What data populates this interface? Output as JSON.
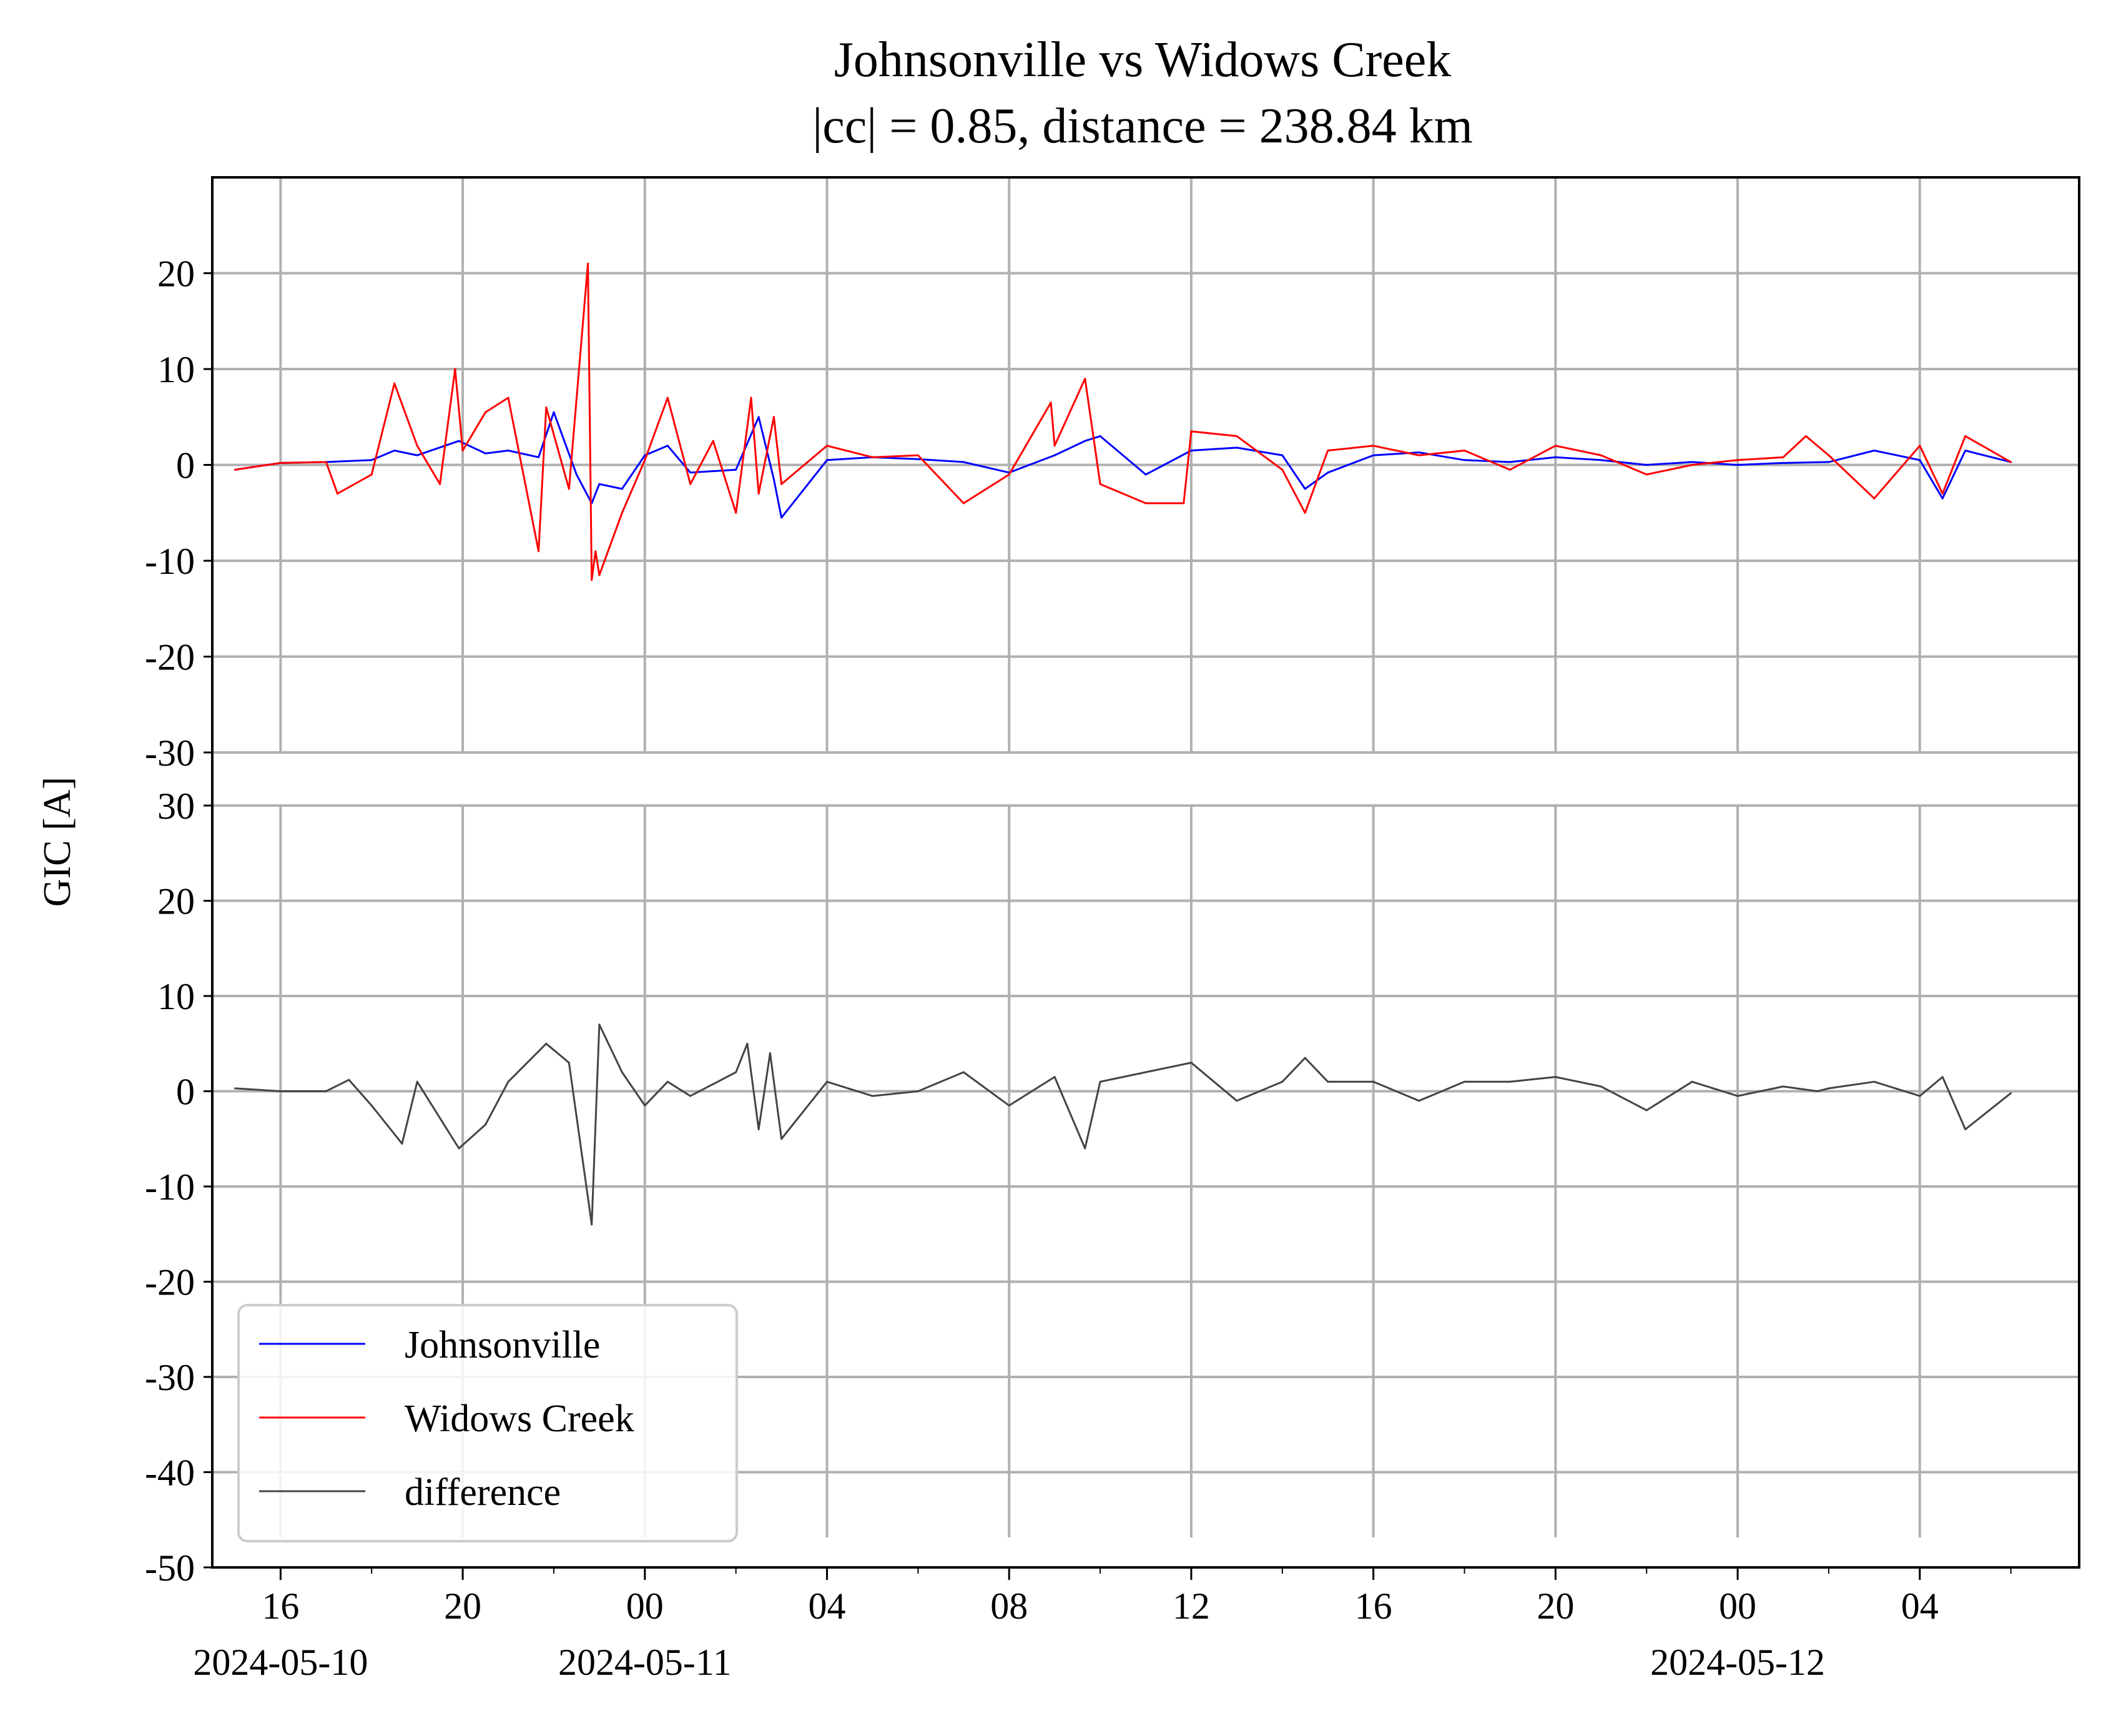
{
  "chart_data": {
    "type": "line",
    "title": "Johnsonville vs Widows Creek",
    "subtitle": "|cc| = 0.85, distance = 238.84 km",
    "ylabel": "GIC [A]",
    "xlabel": "",
    "x_range": [
      "2024-05-10T14:30",
      "2024-05-12T07:30"
    ],
    "x_tick_labels": [
      "16",
      "20",
      "00",
      "04",
      "08",
      "12",
      "16",
      "20",
      "00",
      "04"
    ],
    "x_date_labels": [
      "2024-05-10",
      "2024-05-11",
      "2024-05-12"
    ],
    "grid": true,
    "legend_position": "lower-left",
    "panels": [
      {
        "name": "top",
        "ylim": [
          -30,
          30
        ],
        "y_ticks": [
          20,
          10,
          0,
          -10,
          -20,
          -30
        ],
        "series": [
          {
            "name": "Johnsonville",
            "color": "#0000ff",
            "x": [
              "2024-05-10T15:00",
              "2024-05-10T16:00",
              "2024-05-10T17:00",
              "2024-05-10T18:00",
              "2024-05-10T18:30",
              "2024-05-10T19:00",
              "2024-05-10T19:55",
              "2024-05-10T20:30",
              "2024-05-10T21:00",
              "2024-05-10T21:40",
              "2024-05-10T22:00",
              "2024-05-10T22:30",
              "2024-05-10T22:50",
              "2024-05-10T23:00",
              "2024-05-10T23:30",
              "2024-05-11T00:00",
              "2024-05-11T00:30",
              "2024-05-11T01:00",
              "2024-05-11T02:00",
              "2024-05-11T02:30",
              "2024-05-11T02:50",
              "2024-05-11T03:00",
              "2024-05-11T04:00",
              "2024-05-11T05:00",
              "2024-05-11T06:00",
              "2024-05-11T07:00",
              "2024-05-11T08:00",
              "2024-05-11T09:00",
              "2024-05-11T09:40",
              "2024-05-11T10:00",
              "2024-05-11T11:00",
              "2024-05-11T12:00",
              "2024-05-11T13:00",
              "2024-05-11T14:00",
              "2024-05-11T14:30",
              "2024-05-11T15:00",
              "2024-05-11T16:00",
              "2024-05-11T17:00",
              "2024-05-11T18:00",
              "2024-05-11T19:00",
              "2024-05-11T20:00",
              "2024-05-11T21:00",
              "2024-05-11T22:00",
              "2024-05-11T23:00",
              "2024-05-12T00:00",
              "2024-05-12T01:00",
              "2024-05-12T02:00",
              "2024-05-12T03:00",
              "2024-05-12T04:00",
              "2024-05-12T04:30",
              "2024-05-12T05:00",
              "2024-05-12T06:00"
            ],
            "values": [
              -0.5,
              0.2,
              0.3,
              0.5,
              1.5,
              1.0,
              2.5,
              1.2,
              1.5,
              0.8,
              5.5,
              -1.0,
              -4.0,
              -2.0,
              -2.5,
              1.0,
              2.0,
              -0.8,
              -0.5,
              5.0,
              -1.5,
              -5.5,
              0.5,
              0.8,
              0.6,
              0.3,
              -0.8,
              1.0,
              2.5,
              3.0,
              -1.0,
              1.5,
              1.8,
              1.0,
              -2.5,
              -0.8,
              1.0,
              1.3,
              0.5,
              0.3,
              0.8,
              0.5,
              0.0,
              0.3,
              0.0,
              0.2,
              0.3,
              1.5,
              0.5,
              -3.5,
              1.5,
              0.3
            ]
          },
          {
            "name": "Widows Creek",
            "color": "#ff0000",
            "x": [
              "2024-05-10T15:00",
              "2024-05-10T16:00",
              "2024-05-10T17:00",
              "2024-05-10T17:15",
              "2024-05-10T18:00",
              "2024-05-10T18:30",
              "2024-05-10T19:00",
              "2024-05-10T19:30",
              "2024-05-10T19:50",
              "2024-05-10T20:00",
              "2024-05-10T20:30",
              "2024-05-10T21:00",
              "2024-05-10T21:40",
              "2024-05-10T21:50",
              "2024-05-10T22:20",
              "2024-05-10T22:45",
              "2024-05-10T22:50",
              "2024-05-10T22:55",
              "2024-05-10T23:00",
              "2024-05-10T23:30",
              "2024-05-11T00:00",
              "2024-05-11T00:30",
              "2024-05-11T01:00",
              "2024-05-11T01:30",
              "2024-05-11T02:00",
              "2024-05-11T02:20",
              "2024-05-11T02:30",
              "2024-05-11T02:50",
              "2024-05-11T03:00",
              "2024-05-11T04:00",
              "2024-05-11T05:00",
              "2024-05-11T06:00",
              "2024-05-11T07:00",
              "2024-05-11T08:00",
              "2024-05-11T08:55",
              "2024-05-11T09:00",
              "2024-05-11T09:40",
              "2024-05-11T10:00",
              "2024-05-11T11:00",
              "2024-05-11T11:50",
              "2024-05-11T12:00",
              "2024-05-11T13:00",
              "2024-05-11T14:00",
              "2024-05-11T14:30",
              "2024-05-11T15:00",
              "2024-05-11T16:00",
              "2024-05-11T17:00",
              "2024-05-11T18:00",
              "2024-05-11T19:00",
              "2024-05-11T20:00",
              "2024-05-11T21:00",
              "2024-05-11T22:00",
              "2024-05-11T23:00",
              "2024-05-12T00:00",
              "2024-05-12T01:00",
              "2024-05-12T01:30",
              "2024-05-12T02:00",
              "2024-05-12T03:00",
              "2024-05-12T04:00",
              "2024-05-12T04:30",
              "2024-05-12T05:00",
              "2024-05-12T06:00"
            ],
            "values": [
              -0.5,
              0.2,
              0.3,
              -3.0,
              -1.0,
              8.5,
              2.0,
              -2.0,
              10.0,
              1.5,
              5.5,
              7.0,
              -9.0,
              6.0,
              -2.5,
              21.0,
              -12.0,
              -9.0,
              -11.5,
              -5.0,
              0.5,
              7.0,
              -2.0,
              2.5,
              -5.0,
              7.0,
              -3.0,
              5.0,
              -2.0,
              2.0,
              0.8,
              1.0,
              -4.0,
              -1.0,
              6.5,
              2.0,
              9.0,
              -2.0,
              -4.0,
              -4.0,
              3.5,
              3.0,
              -0.5,
              -5.0,
              1.5,
              2.0,
              1.0,
              1.5,
              -0.5,
              2.0,
              1.0,
              -1.0,
              0.0,
              0.5,
              0.8,
              3.0,
              1.0,
              -3.5,
              2.0,
              -3.0,
              3.0,
              0.3
            ]
          }
        ]
      },
      {
        "name": "bottom",
        "ylim": [
          -50,
          30
        ],
        "y_ticks": [
          30,
          20,
          10,
          0,
          -10,
          -20,
          -30,
          -40,
          -50
        ],
        "series": [
          {
            "name": "difference",
            "color": "#444444",
            "x": [
              "2024-05-10T15:00",
              "2024-05-10T16:00",
              "2024-05-10T17:00",
              "2024-05-10T17:30",
              "2024-05-10T18:00",
              "2024-05-10T18:40",
              "2024-05-10T19:00",
              "2024-05-10T19:55",
              "2024-05-10T20:30",
              "2024-05-10T21:00",
              "2024-05-10T21:50",
              "2024-05-10T22:20",
              "2024-05-10T22:50",
              "2024-05-10T23:00",
              "2024-05-10T23:30",
              "2024-05-11T00:00",
              "2024-05-11T00:30",
              "2024-05-11T01:00",
              "2024-05-11T02:00",
              "2024-05-11T02:15",
              "2024-05-11T02:30",
              "2024-05-11T02:45",
              "2024-05-11T03:00",
              "2024-05-11T04:00",
              "2024-05-11T05:00",
              "2024-05-11T06:00",
              "2024-05-11T07:00",
              "2024-05-11T08:00",
              "2024-05-11T09:00",
              "2024-05-11T09:40",
              "2024-05-11T10:00",
              "2024-05-11T11:00",
              "2024-05-11T12:00",
              "2024-05-11T13:00",
              "2024-05-11T14:00",
              "2024-05-11T14:30",
              "2024-05-11T15:00",
              "2024-05-11T16:00",
              "2024-05-11T17:00",
              "2024-05-11T18:00",
              "2024-05-11T19:00",
              "2024-05-11T20:00",
              "2024-05-11T21:00",
              "2024-05-11T22:00",
              "2024-05-11T23:00",
              "2024-05-12T00:00",
              "2024-05-12T01:00",
              "2024-05-12T01:45",
              "2024-05-12T02:00",
              "2024-05-12T03:00",
              "2024-05-12T04:00",
              "2024-05-12T04:30",
              "2024-05-12T05:00",
              "2024-05-12T06:00"
            ],
            "values": [
              0.3,
              0.0,
              0.0,
              1.2,
              -1.5,
              -5.5,
              1.0,
              -6.0,
              -3.5,
              1.0,
              5.0,
              3.0,
              -14.0,
              7.0,
              2.0,
              -1.5,
              1.0,
              -0.5,
              2.0,
              5.0,
              -4.0,
              4.0,
              -5.0,
              1.0,
              -0.5,
              0.0,
              2.0,
              -1.5,
              1.5,
              -6.0,
              1.0,
              2.0,
              3.0,
              -1.0,
              1.0,
              3.5,
              1.0,
              1.0,
              -1.0,
              1.0,
              1.0,
              1.5,
              0.5,
              -2.0,
              1.0,
              -0.5,
              0.5,
              0.0,
              0.3,
              1.0,
              -0.5,
              1.5,
              -4.0,
              -0.2
            ]
          }
        ]
      }
    ]
  }
}
